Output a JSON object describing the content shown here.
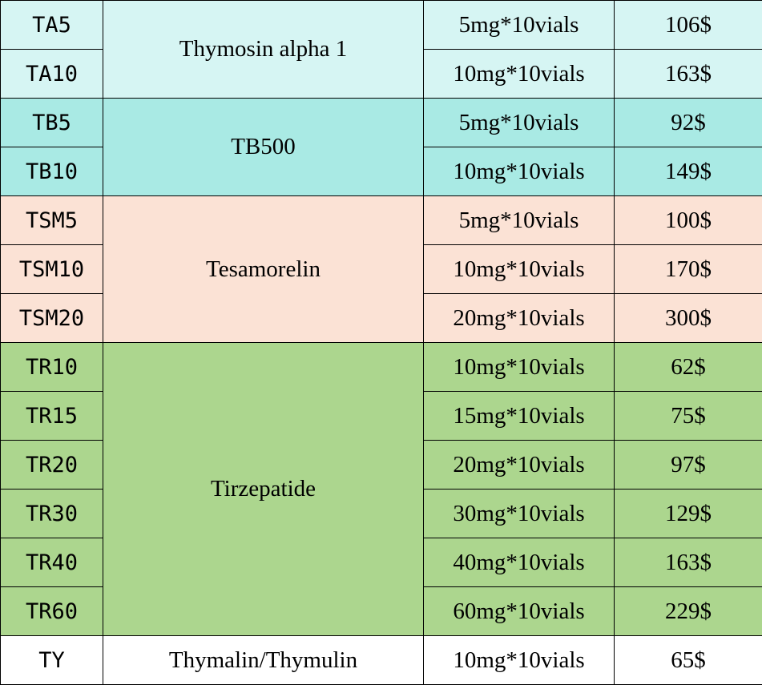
{
  "groups": [
    {
      "key": "TA",
      "name": "Thymosin alpha 1",
      "color": "#d6f5f3",
      "rows": [
        {
          "code": "TA5",
          "spec": "5mg*10vials",
          "price": "106$"
        },
        {
          "code": "TA10",
          "spec": "10mg*10vials",
          "price": "163$"
        }
      ]
    },
    {
      "key": "TB",
      "name": "TB500",
      "color": "#a9eae4",
      "rows": [
        {
          "code": "TB5",
          "spec": "5mg*10vials",
          "price": "92$"
        },
        {
          "code": "TB10",
          "spec": "10mg*10vials",
          "price": "149$"
        }
      ]
    },
    {
      "key": "TSM",
      "name": "Tesamorelin",
      "color": "#fbe2d5",
      "rows": [
        {
          "code": "TSM5",
          "spec": "5mg*10vials",
          "price": "100$"
        },
        {
          "code": "TSM10",
          "spec": "10mg*10vials",
          "price": "170$"
        },
        {
          "code": "TSM20",
          "spec": "20mg*10vials",
          "price": "300$"
        }
      ]
    },
    {
      "key": "TR",
      "name": "Tirzepatide",
      "color": "#acd68e",
      "rows": [
        {
          "code": "TR10",
          "spec": "10mg*10vials",
          "price": "62$"
        },
        {
          "code": "TR15",
          "spec": "15mg*10vials",
          "price": "75$"
        },
        {
          "code": "TR20",
          "spec": "20mg*10vials",
          "price": "97$"
        },
        {
          "code": "TR30",
          "spec": "30mg*10vials",
          "price": "129$"
        },
        {
          "code": "TR40",
          "spec": "40mg*10vials",
          "price": "163$"
        },
        {
          "code": "TR60",
          "spec": "60mg*10vials",
          "price": "229$"
        }
      ]
    },
    {
      "key": "TY",
      "name": "Thymalin/Thymulin",
      "color": "#ffffff",
      "rows": [
        {
          "code": "TY",
          "spec": "10mg*10vials",
          "price": "65$"
        }
      ]
    }
  ]
}
